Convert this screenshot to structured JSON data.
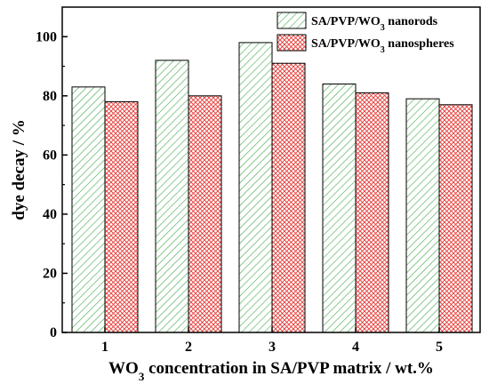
{
  "chart_data": {
    "type": "bar",
    "categories": [
      "1",
      "2",
      "3",
      "4",
      "5"
    ],
    "series": [
      {
        "name": "SA/PVP/WO3 nanorods",
        "name_parts": [
          "SA/PVP/WO",
          "3",
          " nanorods"
        ],
        "values": [
          83,
          92,
          98,
          84,
          79
        ],
        "color": "#4caf50",
        "pattern": "diagonal-hatch"
      },
      {
        "name": "SA/PVP/WO3 nanospheres",
        "name_parts": [
          "SA/PVP/WO",
          "3",
          " nanospheres"
        ],
        "values": [
          78,
          80,
          91,
          81,
          77
        ],
        "color": "#e53935",
        "pattern": "crosshatch"
      }
    ],
    "xlabel": "WO3 concentration in SA/PVP matrix / wt.%",
    "xlabel_parts": [
      "WO",
      "3",
      " concentration in SA/PVP matrix / wt.%"
    ],
    "ylabel": "dye decay / %",
    "ylim": [
      0,
      110
    ],
    "yticks": [
      0,
      20,
      40,
      60,
      80,
      100
    ],
    "legend": "top-right",
    "grid": false
  }
}
